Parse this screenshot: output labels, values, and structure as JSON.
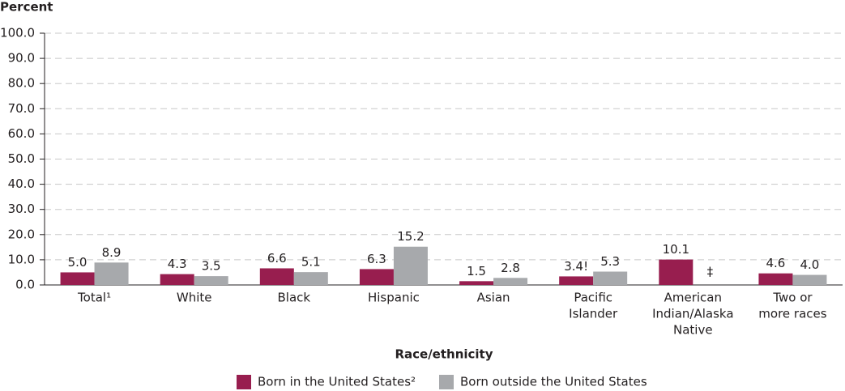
{
  "chart_data": {
    "type": "bar",
    "y_label": "Percent",
    "x_label": "Race/ethnicity",
    "categories": [
      [
        "Total¹"
      ],
      [
        "White"
      ],
      [
        "Black"
      ],
      [
        "Hispanic"
      ],
      [
        "Asian"
      ],
      [
        "Pacific",
        "Islander"
      ],
      [
        "American",
        "Indian/Alaska",
        "Native"
      ],
      [
        "Two or",
        "more races"
      ]
    ],
    "series": [
      {
        "name": "Born in the United States²",
        "color": "#981e4f",
        "values": [
          5.0,
          4.3,
          6.6,
          6.3,
          1.5,
          3.4,
          10.1,
          4.6
        ],
        "value_labels": [
          "5.0",
          "4.3",
          "6.6",
          "6.3",
          "1.5",
          "3.4!",
          "10.1",
          "4.6"
        ]
      },
      {
        "name": "Born outside the United States",
        "color": "#a7a9ac",
        "values": [
          8.9,
          3.5,
          5.1,
          15.2,
          2.8,
          5.3,
          null,
          4.0
        ],
        "value_labels": [
          "8.9",
          "3.5",
          "5.1",
          "15.2",
          "2.8",
          "5.3",
          "‡",
          "4.0"
        ]
      }
    ],
    "ylim": [
      0,
      100
    ],
    "yticks": [
      {
        "value": 0,
        "label": "0.0"
      },
      {
        "value": 10,
        "label": "10.0"
      },
      {
        "value": 20,
        "label": "20.0"
      },
      {
        "value": 30,
        "label": "30.0"
      },
      {
        "value": 40,
        "label": "40.0"
      },
      {
        "value": 50,
        "label": "50.0"
      },
      {
        "value": 60,
        "label": "60.0"
      },
      {
        "value": 70,
        "label": "70.0"
      },
      {
        "value": 80,
        "label": "80.0"
      },
      {
        "value": 90,
        "label": "90.0"
      },
      {
        "value": 100,
        "label": "100.0"
      }
    ],
    "grid": true
  }
}
